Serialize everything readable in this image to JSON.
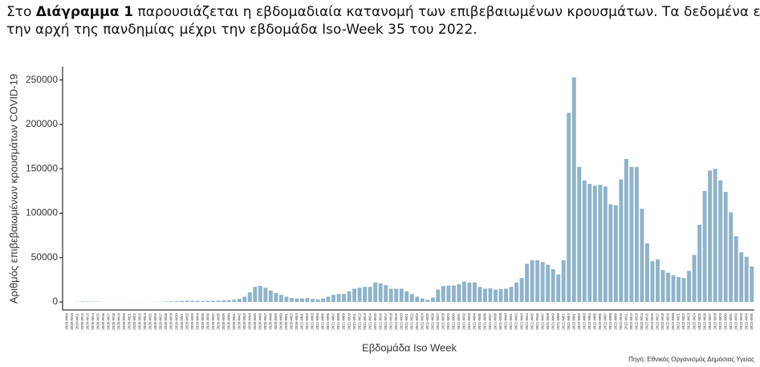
{
  "intro": {
    "line1_start": "Στο ",
    "line1_bold": "Διάγραμμα 1",
    "line1_end": " παρουσιάζεται η εβδομαδιαία κατανομή των επιβεβαιωμένων κρουσμάτων.  Τα δεδομένα είναι από",
    "line2": "την αρχή της πανδημίας μέχρι την εβδομάδα Iso-Week 35 του 2022."
  },
  "chart_data": {
    "type": "bar",
    "x_label": "Εβδομάδα Iso Week",
    "y_label": "Αριθμός επιβεβαιωμένων κρουσμάτων COVID-19",
    "source": "Πηγή: Εθνικός Οργανισμός Δημόσιας Υγείας",
    "color": "#8fb3c9",
    "ylim": [
      -9000,
      265000
    ],
    "yticks": [
      0,
      50000,
      100000,
      150000,
      200000,
      250000
    ],
    "categories": [
      "2020-W09",
      "2020-W10",
      "2020-W11",
      "2020-W12",
      "2020-W13",
      "2020-W14",
      "2020-W15",
      "2020-W16",
      "2020-W17",
      "2020-W18",
      "2020-W19",
      "2020-W20",
      "2020-W21",
      "2020-W22",
      "2020-W23",
      "2020-W24",
      "2020-W25",
      "2020-W26",
      "2020-W27",
      "2020-W28",
      "2020-W29",
      "2020-W30",
      "2020-W31",
      "2020-W32",
      "2020-W33",
      "2020-W34",
      "2020-W35",
      "2020-W36",
      "2020-W37",
      "2020-W38",
      "2020-W39",
      "2020-W40",
      "2020-W41",
      "2020-W42",
      "2020-W43",
      "2020-W44",
      "2020-W45",
      "2020-W46",
      "2020-W47",
      "2020-W48",
      "2020-W49",
      "2020-W50",
      "2020-W51",
      "2020-W52",
      "2020-W53",
      "2021-W01",
      "2021-W02",
      "2021-W03",
      "2021-W04",
      "2021-W05",
      "2021-W06",
      "2021-W07",
      "2021-W08",
      "2021-W09",
      "2021-W10",
      "2021-W11",
      "2021-W12",
      "2021-W13",
      "2021-W14",
      "2021-W15",
      "2021-W16",
      "2021-W17",
      "2021-W18",
      "2021-W19",
      "2021-W20",
      "2021-W21",
      "2021-W22",
      "2021-W23",
      "2021-W24",
      "2021-W25",
      "2021-W26",
      "2021-W27",
      "2021-W28",
      "2021-W29",
      "2021-W30",
      "2021-W31",
      "2021-W32",
      "2021-W33",
      "2021-W34",
      "2021-W35",
      "2021-W36",
      "2021-W37",
      "2021-W38",
      "2021-W39",
      "2021-W40",
      "2021-W41",
      "2021-W42",
      "2021-W43",
      "2021-W44",
      "2021-W45",
      "2021-W46",
      "2021-W47",
      "2021-W48",
      "2021-W49",
      "2021-W50",
      "2021-W51",
      "2021-W52",
      "2022-W01",
      "2022-W02",
      "2022-W03",
      "2022-W04",
      "2022-W05",
      "2022-W06",
      "2022-W07",
      "2022-W08",
      "2022-W09",
      "2022-W10",
      "2022-W11",
      "2022-W12",
      "2022-W13",
      "2022-W14",
      "2022-W15",
      "2022-W16",
      "2022-W17",
      "2022-W18",
      "2022-W19",
      "2022-W20",
      "2022-W21",
      "2022-W22",
      "2022-W23",
      "2022-W24",
      "2022-W25",
      "2022-W26",
      "2022-W27",
      "2022-W28",
      "2022-W29",
      "2022-W30",
      "2022-W31",
      "2022-W32",
      "2022-W33",
      "2022-W34",
      "2022-W35"
    ],
    "values": [
      0,
      50,
      300,
      600,
      500,
      400,
      300,
      200,
      150,
      100,
      80,
      60,
      50,
      60,
      80,
      100,
      150,
      200,
      300,
      500,
      700,
      900,
      1200,
      1500,
      1300,
      1200,
      1100,
      1300,
      1500,
      1600,
      1800,
      2000,
      2500,
      3500,
      6000,
      11000,
      17000,
      18000,
      16000,
      13000,
      10000,
      8000,
      6000,
      4500,
      4000,
      4000,
      4500,
      3500,
      3000,
      4000,
      6000,
      8000,
      9000,
      9000,
      12000,
      15000,
      16000,
      17000,
      17000,
      22000,
      21000,
      19000,
      15000,
      15000,
      15000,
      12000,
      9000,
      6000,
      4000,
      2500,
      5000,
      14000,
      18000,
      18500,
      18500,
      20000,
      23000,
      22000,
      22000,
      17000,
      15000,
      15500,
      14000,
      14500,
      15000,
      17000,
      22000,
      27000,
      43000,
      47000,
      47000,
      45000,
      42000,
      37000,
      31000,
      47000,
      213000,
      253000,
      152000,
      137000,
      133000,
      131000,
      132000,
      130000,
      110000,
      109000,
      138000,
      161000,
      152000,
      152000,
      105000,
      66000,
      46000,
      48000,
      36000,
      33000,
      30000,
      28000,
      27000,
      35000,
      53000,
      87000,
      125000,
      148000,
      150000,
      137000,
      124000,
      101000,
      74000,
      56000,
      51000,
      40000
    ]
  }
}
